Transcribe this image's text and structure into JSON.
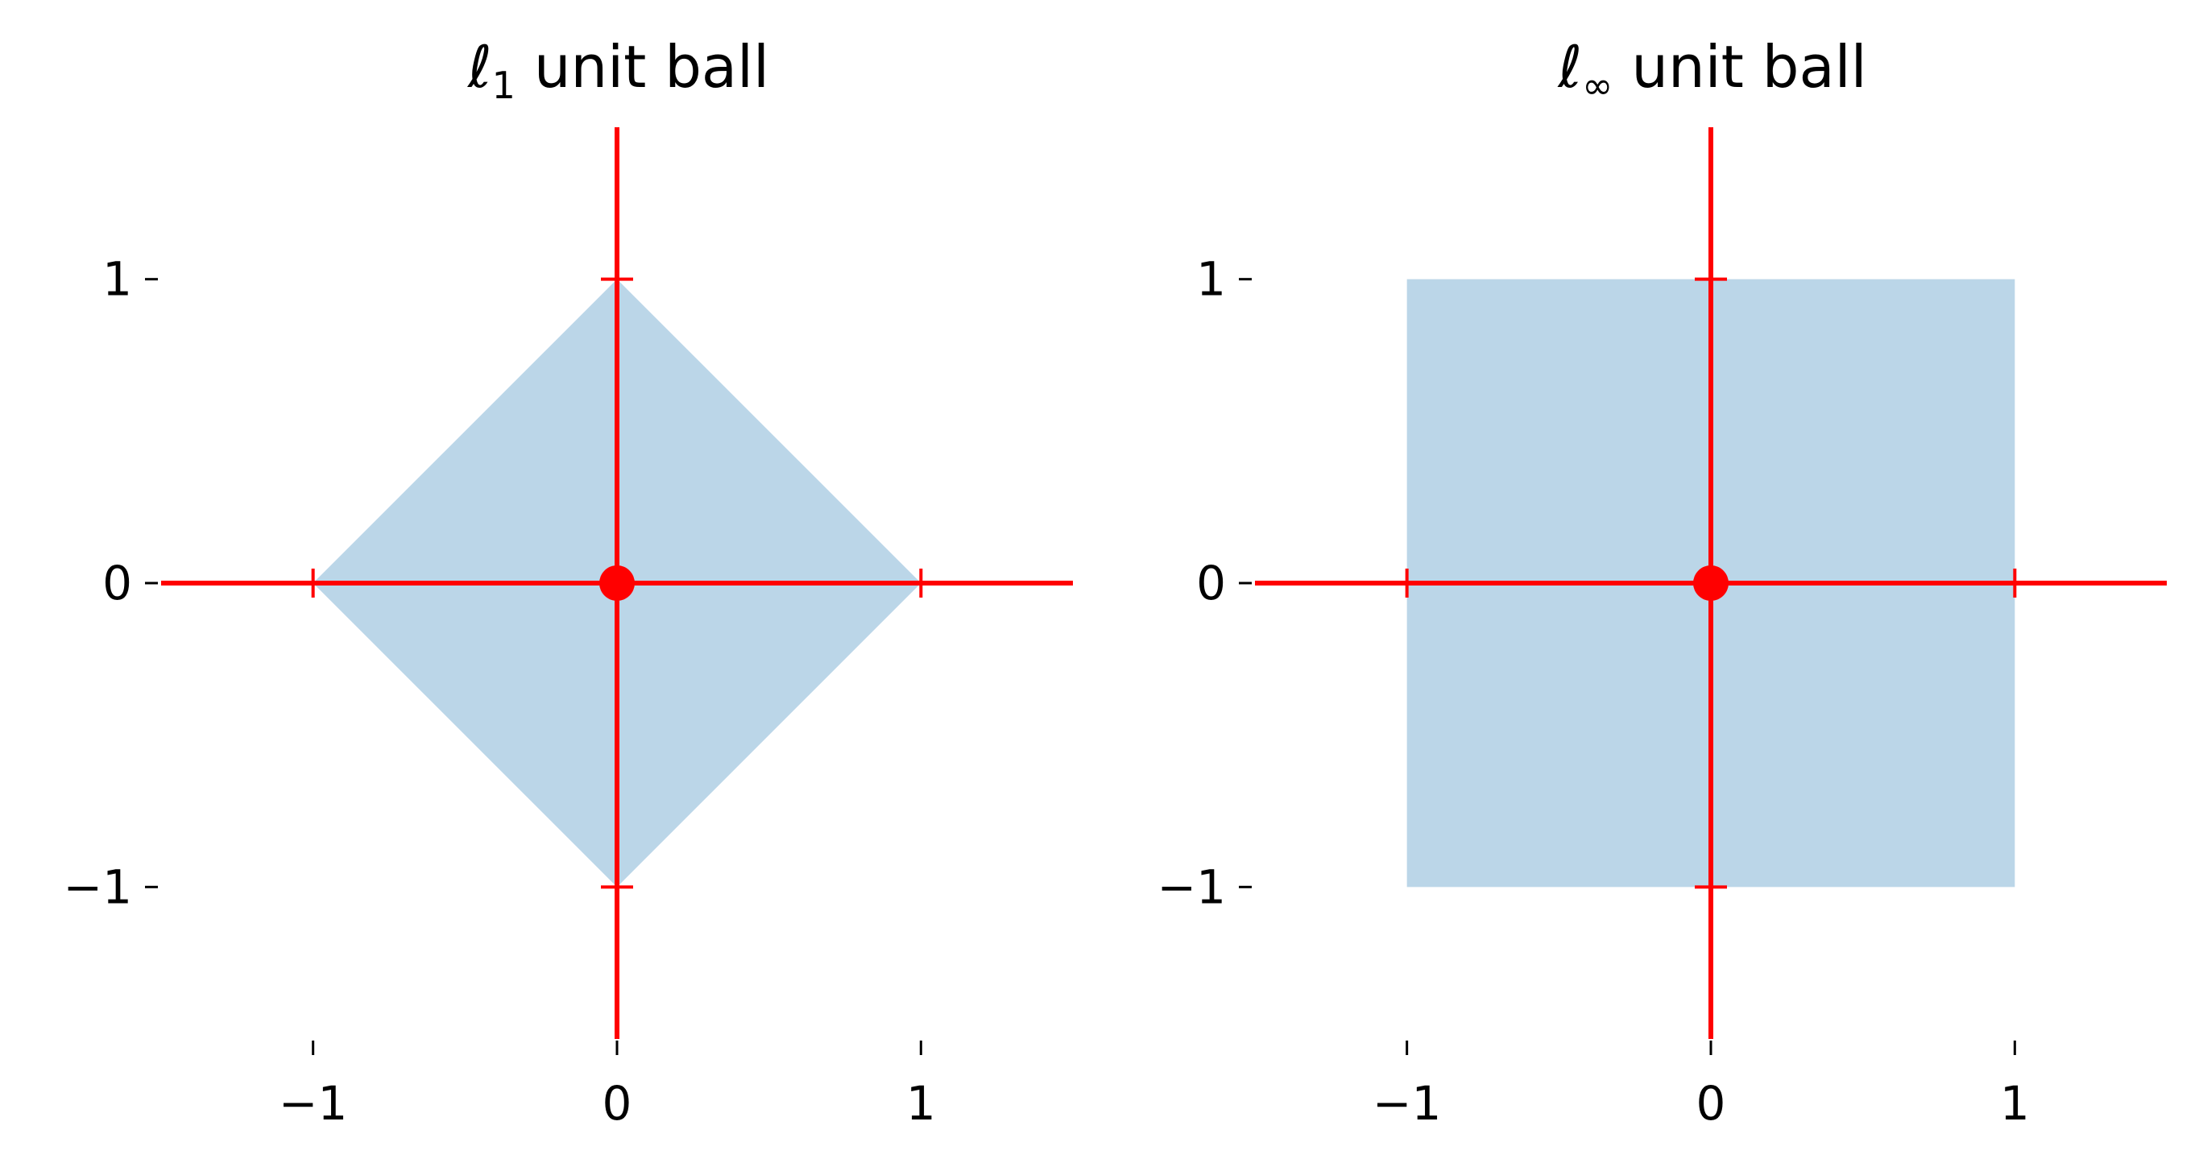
{
  "figure": {
    "colors": {
      "region_fill": "#bbd6e8",
      "axis_color": "#ff0000",
      "text_color": "#000000",
      "background": "#ffffff"
    }
  },
  "chart_data": [
    {
      "type": "area",
      "title_main": "ℓ",
      "title_sub": "1",
      "title_rest": " unit ball",
      "region": {
        "shape": "diamond",
        "vertices": [
          [
            1,
            0
          ],
          [
            0,
            1
          ],
          [
            -1,
            0
          ],
          [
            0,
            -1
          ]
        ]
      },
      "origin_point": [
        0,
        0
      ],
      "xlim": [
        -1.5,
        1.5
      ],
      "ylim": [
        -1.5,
        1.5
      ],
      "xticks": [
        -1,
        0,
        1
      ],
      "yticks": [
        -1,
        0,
        1
      ],
      "xtick_labels": [
        "−1",
        "0",
        "1"
      ],
      "ytick_labels": [
        "−1",
        "0",
        "1"
      ],
      "axis_marks": [
        -1,
        1
      ],
      "grid": false,
      "xlabel": "",
      "ylabel": ""
    },
    {
      "type": "area",
      "title_main": "ℓ",
      "title_sub": "∞",
      "title_rest": " unit ball",
      "region": {
        "shape": "square",
        "vertices": [
          [
            1,
            1
          ],
          [
            -1,
            1
          ],
          [
            -1,
            -1
          ],
          [
            1,
            -1
          ]
        ]
      },
      "origin_point": [
        0,
        0
      ],
      "xlim": [
        -1.5,
        1.5
      ],
      "ylim": [
        -1.5,
        1.5
      ],
      "xticks": [
        -1,
        0,
        1
      ],
      "yticks": [
        -1,
        0,
        1
      ],
      "xtick_labels": [
        "−1",
        "0",
        "1"
      ],
      "ytick_labels": [
        "−1",
        "0",
        "1"
      ],
      "axis_marks": [
        -1,
        1
      ],
      "grid": false,
      "xlabel": "",
      "ylabel": ""
    }
  ]
}
